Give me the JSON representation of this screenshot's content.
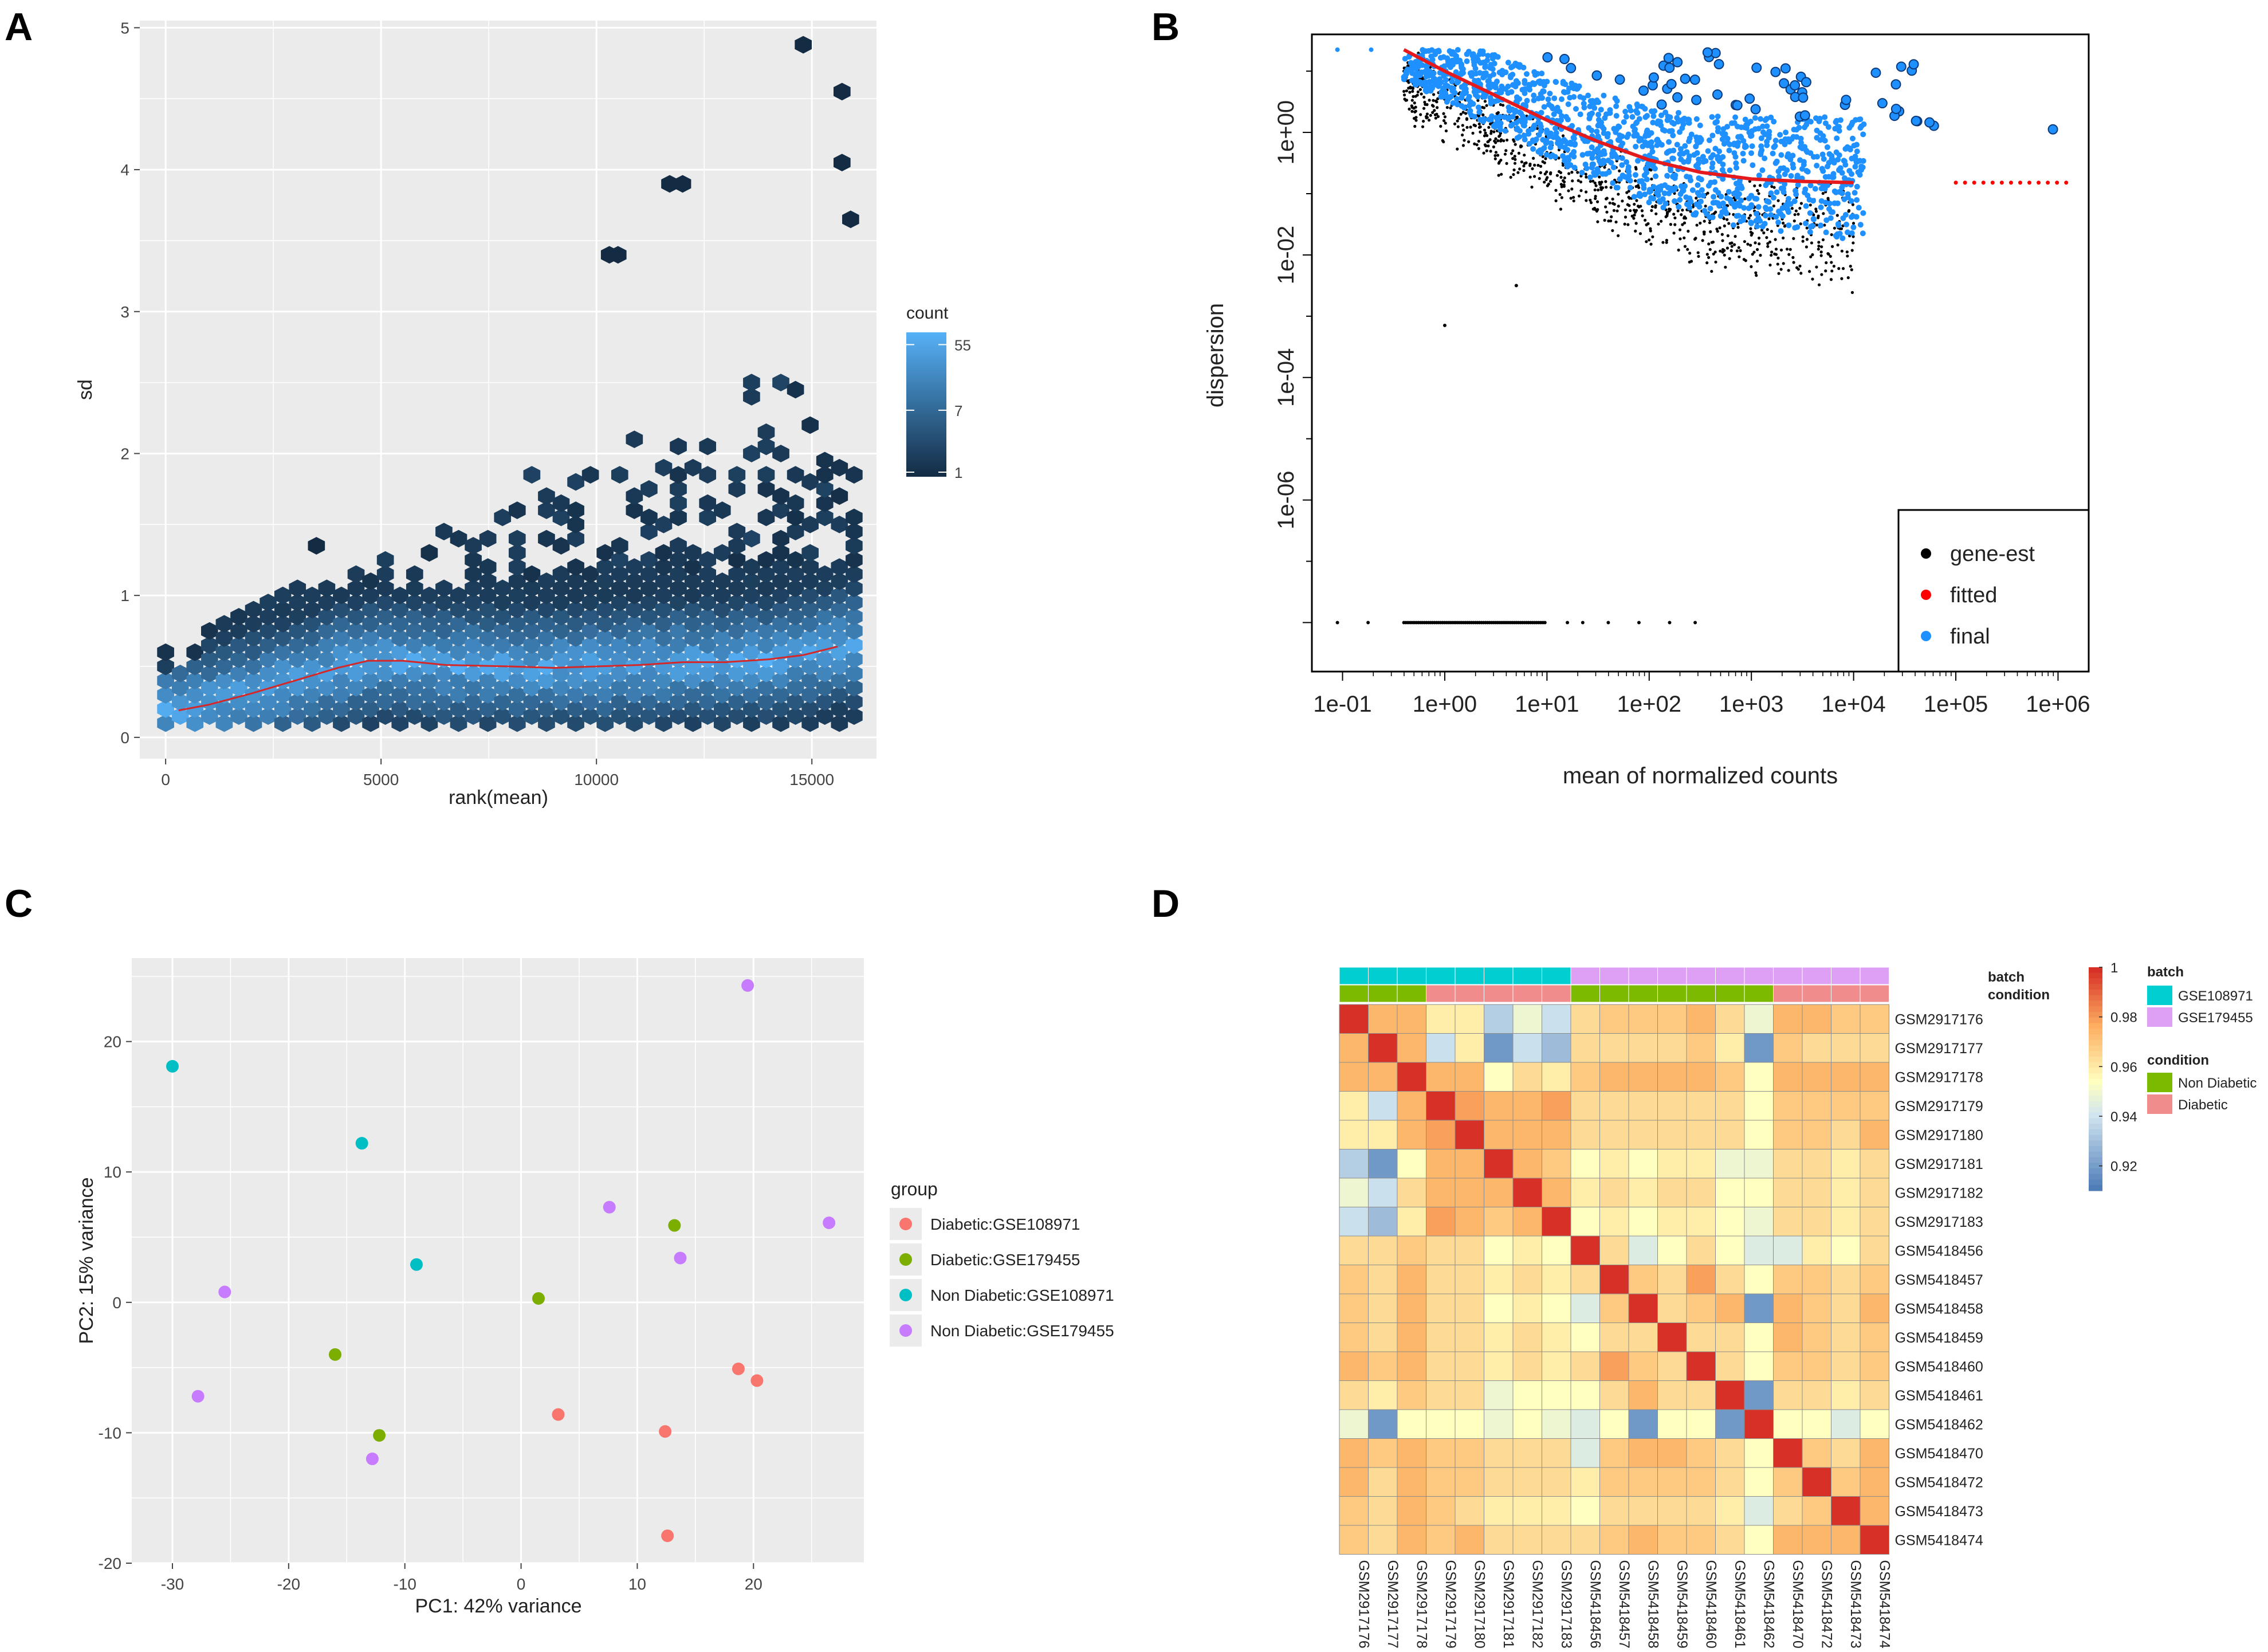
{
  "panel_letters": {
    "a": "A",
    "b": "B",
    "c": "C",
    "d": "D"
  },
  "chart_data": [
    {
      "id": "A",
      "type": "heatmap",
      "subtype": "hexbin",
      "xlabel": "rank(mean)",
      "ylabel": "sd",
      "xlim": [
        -600,
        16500
      ],
      "ylim": [
        -0.15,
        5.05
      ],
      "x_ticks": [
        0,
        5000,
        10000,
        15000
      ],
      "y_ticks": [
        0,
        1,
        2,
        3,
        4,
        5
      ],
      "legend": {
        "title": "count",
        "labels": [
          "55",
          "7",
          "1"
        ],
        "label_values": [
          55,
          7,
          1
        ]
      },
      "fit_line": [
        [
          300,
          0.19
        ],
        [
          1000,
          0.23
        ],
        [
          2000,
          0.31
        ],
        [
          3000,
          0.4
        ],
        [
          4000,
          0.49
        ],
        [
          4700,
          0.54
        ],
        [
          5500,
          0.54
        ],
        [
          6500,
          0.51
        ],
        [
          8000,
          0.5
        ],
        [
          9000,
          0.49
        ],
        [
          10000,
          0.5
        ],
        [
          11000,
          0.51
        ],
        [
          12000,
          0.53
        ],
        [
          13000,
          0.53
        ],
        [
          14000,
          0.55
        ],
        [
          14800,
          0.58
        ],
        [
          15600,
          0.64
        ]
      ],
      "outliers": [
        [
          14800,
          4.88
        ],
        [
          15700,
          4.55
        ],
        [
          15700,
          4.05
        ],
        [
          15900,
          3.65
        ],
        [
          11700,
          3.9
        ],
        [
          12000,
          3.9
        ],
        [
          10300,
          3.4
        ],
        [
          10500,
          3.4
        ],
        [
          3500,
          1.35
        ]
      ],
      "colors": {
        "panel_bg": "#ebebeb",
        "grid": "#ffffff",
        "low": "#132b43",
        "high": "#56b1f7",
        "line": "#d62728"
      }
    },
    {
      "id": "B",
      "type": "scatter",
      "xscale": "log10",
      "yscale": "log10",
      "xlabel": "mean of normalized counts",
      "ylabel": "dispersion",
      "x_tick_labels": [
        "1e-01",
        "1e+00",
        "1e+01",
        "1e+02",
        "1e+03",
        "1e+04",
        "1e+05",
        "1e+06"
      ],
      "x_tick_exps": [
        -1,
        0,
        1,
        2,
        3,
        4,
        5,
        6
      ],
      "y_tick_labels": [
        "1e+00",
        "1e-02",
        "1e-04",
        "1e-06"
      ],
      "y_tick_exps": [
        0,
        -2,
        -4,
        -6
      ],
      "xlim_exp": [
        -1.3,
        6.3
      ],
      "ylim_exp": [
        -8.8,
        1.6
      ],
      "fitted_curve": [
        [
          -0.4,
          1.35
        ],
        [
          0,
          1.0
        ],
        [
          0.5,
          0.6
        ],
        [
          1,
          0.2
        ],
        [
          1.5,
          -0.15
        ],
        [
          2,
          -0.45
        ],
        [
          2.5,
          -0.65
        ],
        [
          3,
          -0.76
        ],
        [
          3.5,
          -0.8
        ],
        [
          4,
          -0.82
        ],
        [
          5.5,
          -0.82
        ],
        [
          6.1,
          -0.82
        ]
      ],
      "legend": [
        {
          "label": "gene-est",
          "color": "#000000"
        },
        {
          "label": "fitted",
          "color": "#ff0000"
        },
        {
          "label": "final",
          "color": "#1e90ff"
        }
      ],
      "legend_position": "bottom-right"
    },
    {
      "id": "C",
      "type": "scatter",
      "xlabel": "PC1: 42% variance",
      "ylabel": "PC2: 15% variance",
      "xlim": [
        -33.5,
        29.5
      ],
      "ylim": [
        -20.0,
        26.4
      ],
      "x_ticks": [
        -30,
        -20,
        -10,
        0,
        10,
        20
      ],
      "y_ticks": [
        -20,
        -10,
        0,
        10,
        20
      ],
      "legend_title": "group",
      "series": [
        {
          "name": "Diabetic:GSE108971",
          "color": "#f8766d",
          "points": [
            [
              3.2,
              -8.6
            ],
            [
              12.4,
              -9.9
            ],
            [
              18.7,
              -5.1
            ],
            [
              20.3,
              -6.0
            ],
            [
              12.6,
              -17.9
            ]
          ]
        },
        {
          "name": "Diabetic:GSE179455",
          "color": "#7cae00",
          "points": [
            [
              13.2,
              5.9
            ],
            [
              1.5,
              0.3
            ],
            [
              -16.0,
              -4.0
            ],
            [
              -12.2,
              -10.2
            ]
          ]
        },
        {
          "name": "Non Diabetic:GSE108971",
          "color": "#00bfc4",
          "points": [
            [
              -30.0,
              18.1
            ],
            [
              -13.7,
              12.2
            ],
            [
              -9.0,
              2.9
            ]
          ]
        },
        {
          "name": "Non Diabetic:GSE179455",
          "color": "#c77cff",
          "points": [
            [
              19.5,
              24.3
            ],
            [
              7.6,
              7.3
            ],
            [
              26.5,
              6.1
            ],
            [
              13.7,
              3.4
            ],
            [
              -25.5,
              0.8
            ],
            [
              -27.8,
              -7.2
            ],
            [
              -12.8,
              -12.0
            ]
          ]
        }
      ]
    },
    {
      "id": "D",
      "type": "heatmap",
      "samples": [
        "GSM2917176",
        "GSM2917177",
        "GSM2917178",
        "GSM2917179",
        "GSM2917180",
        "GSM2917181",
        "GSM2917182",
        "GSM2917183",
        "GSM5418456",
        "GSM5418457",
        "GSM5418458",
        "GSM5418459",
        "GSM5418460",
        "GSM5418461",
        "GSM5418462",
        "GSM5418470",
        "GSM5418472",
        "GSM5418473",
        "GSM5418474"
      ],
      "annotation_labels": {
        "batch": "batch",
        "condition": "condition"
      },
      "batch": [
        "GSE108971",
        "GSE108971",
        "GSE108971",
        "GSE108971",
        "GSE108971",
        "GSE108971",
        "GSE108971",
        "GSE108971",
        "GSE179455",
        "GSE179455",
        "GSE179455",
        "GSE179455",
        "GSE179455",
        "GSE179455",
        "GSE179455",
        "GSE179455",
        "GSE179455",
        "GSE179455",
        "GSE179455"
      ],
      "condition": [
        "Non Diabetic",
        "Non Diabetic",
        "Non Diabetic",
        "Diabetic",
        "Diabetic",
        "Diabetic",
        "Diabetic",
        "Diabetic",
        "Non Diabetic",
        "Non Diabetic",
        "Non Diabetic",
        "Non Diabetic",
        "Non Diabetic",
        "Non Diabetic",
        "Non Diabetic",
        "Diabetic",
        "Diabetic",
        "Diabetic",
        "Diabetic"
      ],
      "colorbar": {
        "labels": [
          "1",
          "0.98",
          "0.96",
          "0.94",
          "0.92"
        ],
        "values": [
          1,
          0.98,
          0.96,
          0.94,
          0.92
        ],
        "min": 0.91,
        "max": 1.0
      },
      "legend": {
        "batch_title": "batch",
        "batch": [
          {
            "label": "GSE108971",
            "color": "#00ced1"
          },
          {
            "label": "GSE179455",
            "color": "#dda0f5"
          }
        ],
        "condition_title": "condition",
        "condition": [
          {
            "label": "Non Diabetic",
            "color": "#7cba00"
          },
          {
            "label": "Diabetic",
            "color": "#f08c8c"
          }
        ]
      },
      "matrix": [
        [
          1.0,
          0.975,
          0.975,
          0.96,
          0.96,
          0.935,
          0.95,
          0.94,
          0.965,
          0.97,
          0.97,
          0.97,
          0.975,
          0.965,
          0.95,
          0.975,
          0.975,
          0.97,
          0.97
        ],
        [
          0.975,
          1.0,
          0.975,
          0.94,
          0.96,
          0.92,
          0.94,
          0.93,
          0.965,
          0.965,
          0.965,
          0.965,
          0.97,
          0.96,
          0.92,
          0.97,
          0.965,
          0.965,
          0.965
        ],
        [
          0.975,
          0.975,
          1.0,
          0.975,
          0.975,
          0.955,
          0.965,
          0.96,
          0.97,
          0.975,
          0.975,
          0.975,
          0.975,
          0.97,
          0.955,
          0.975,
          0.975,
          0.975,
          0.975
        ],
        [
          0.96,
          0.94,
          0.975,
          1.0,
          0.98,
          0.975,
          0.975,
          0.98,
          0.965,
          0.965,
          0.965,
          0.965,
          0.965,
          0.965,
          0.955,
          0.97,
          0.97,
          0.97,
          0.97
        ],
        [
          0.96,
          0.96,
          0.975,
          0.98,
          1.0,
          0.975,
          0.975,
          0.975,
          0.965,
          0.965,
          0.965,
          0.965,
          0.965,
          0.965,
          0.955,
          0.97,
          0.97,
          0.965,
          0.975
        ],
        [
          0.935,
          0.92,
          0.955,
          0.975,
          0.975,
          1.0,
          0.975,
          0.97,
          0.955,
          0.96,
          0.955,
          0.96,
          0.96,
          0.95,
          0.95,
          0.965,
          0.965,
          0.96,
          0.965
        ],
        [
          0.95,
          0.94,
          0.965,
          0.975,
          0.975,
          0.975,
          1.0,
          0.975,
          0.96,
          0.965,
          0.96,
          0.965,
          0.965,
          0.955,
          0.955,
          0.965,
          0.965,
          0.96,
          0.965
        ],
        [
          0.94,
          0.93,
          0.96,
          0.98,
          0.975,
          0.97,
          0.975,
          1.0,
          0.955,
          0.96,
          0.955,
          0.96,
          0.96,
          0.955,
          0.95,
          0.965,
          0.965,
          0.96,
          0.965
        ],
        [
          0.965,
          0.965,
          0.97,
          0.965,
          0.965,
          0.955,
          0.96,
          0.955,
          1.0,
          0.965,
          0.945,
          0.955,
          0.965,
          0.955,
          0.945,
          0.945,
          0.96,
          0.955,
          0.965
        ],
        [
          0.97,
          0.965,
          0.975,
          0.965,
          0.965,
          0.96,
          0.965,
          0.96,
          0.965,
          1.0,
          0.97,
          0.965,
          0.98,
          0.965,
          0.955,
          0.97,
          0.97,
          0.965,
          0.97
        ],
        [
          0.97,
          0.965,
          0.975,
          0.965,
          0.965,
          0.955,
          0.96,
          0.955,
          0.945,
          0.97,
          1.0,
          0.965,
          0.97,
          0.975,
          0.92,
          0.975,
          0.97,
          0.965,
          0.975
        ],
        [
          0.97,
          0.965,
          0.975,
          0.965,
          0.965,
          0.96,
          0.965,
          0.96,
          0.955,
          0.965,
          0.965,
          1.0,
          0.965,
          0.965,
          0.955,
          0.975,
          0.97,
          0.965,
          0.97
        ],
        [
          0.975,
          0.97,
          0.975,
          0.965,
          0.965,
          0.96,
          0.965,
          0.96,
          0.965,
          0.98,
          0.97,
          0.965,
          1.0,
          0.965,
          0.955,
          0.97,
          0.97,
          0.965,
          0.97
        ],
        [
          0.965,
          0.96,
          0.97,
          0.965,
          0.965,
          0.95,
          0.955,
          0.955,
          0.955,
          0.965,
          0.975,
          0.965,
          0.965,
          1.0,
          0.92,
          0.965,
          0.965,
          0.96,
          0.965
        ],
        [
          0.95,
          0.92,
          0.955,
          0.955,
          0.955,
          0.95,
          0.955,
          0.95,
          0.945,
          0.955,
          0.92,
          0.955,
          0.955,
          0.92,
          1.0,
          0.955,
          0.955,
          0.945,
          0.955
        ],
        [
          0.975,
          0.97,
          0.975,
          0.97,
          0.97,
          0.965,
          0.965,
          0.965,
          0.945,
          0.97,
          0.975,
          0.975,
          0.97,
          0.965,
          0.955,
          1.0,
          0.97,
          0.965,
          0.975
        ],
        [
          0.975,
          0.965,
          0.975,
          0.97,
          0.97,
          0.965,
          0.965,
          0.965,
          0.96,
          0.97,
          0.97,
          0.97,
          0.97,
          0.965,
          0.955,
          0.97,
          1.0,
          0.97,
          0.975
        ],
        [
          0.97,
          0.965,
          0.975,
          0.97,
          0.965,
          0.96,
          0.96,
          0.96,
          0.955,
          0.965,
          0.965,
          0.965,
          0.965,
          0.96,
          0.945,
          0.965,
          0.97,
          1.0,
          0.975
        ],
        [
          0.97,
          0.965,
          0.975,
          0.97,
          0.975,
          0.965,
          0.965,
          0.965,
          0.965,
          0.97,
          0.975,
          0.97,
          0.97,
          0.965,
          0.955,
          0.975,
          0.975,
          0.975,
          1.0
        ]
      ]
    }
  ]
}
